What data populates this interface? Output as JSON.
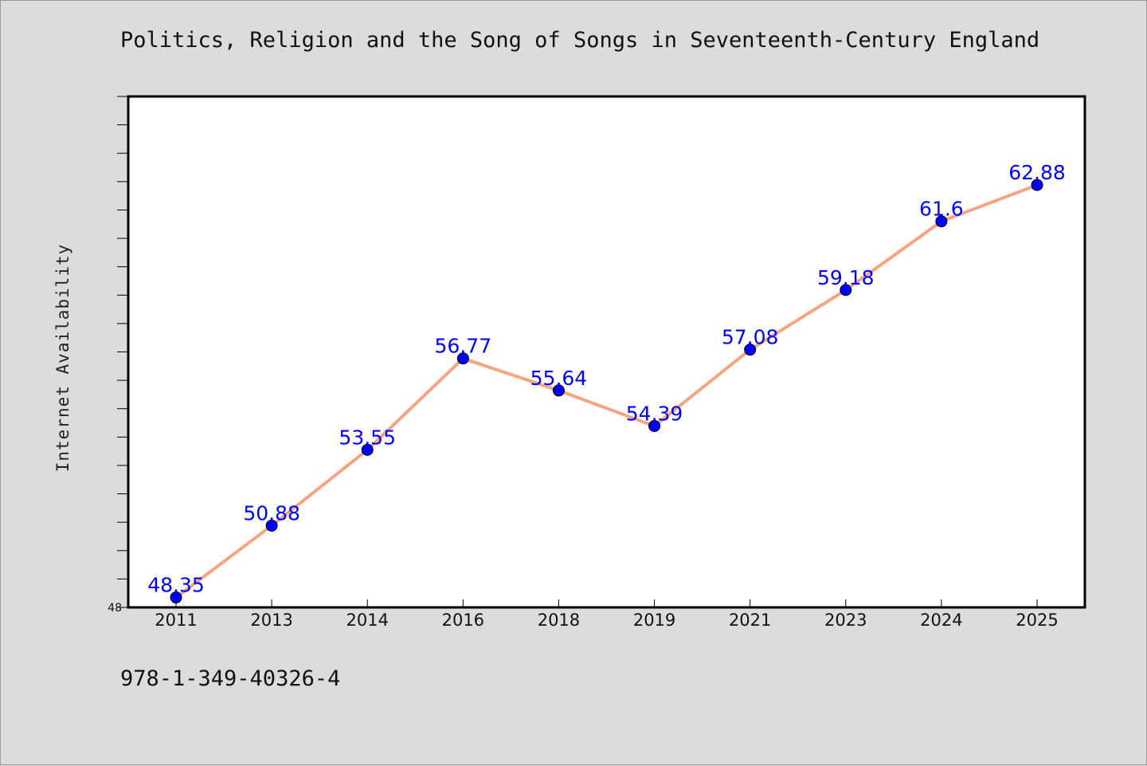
{
  "header": {
    "title": "Politics, Religion and the Song of Songs in Seventeenth-Century England"
  },
  "footer": {
    "code": "978-1-349-40326-4"
  },
  "chart_data": {
    "type": "line",
    "title": "Politics, Religion and the Song of Songs in Seventeenth-Century England",
    "xlabel": "",
    "ylabel": "Internet Availability",
    "categories": [
      "2011",
      "2013",
      "2014",
      "2016",
      "2018",
      "2019",
      "2021",
      "2023",
      "2024",
      "2025"
    ],
    "series": [
      {
        "values": [
          48.35,
          50.88,
          53.55,
          56.77,
          55.64,
          54.39,
          57.08,
          59.18,
          61.6,
          62.88
        ],
        "data_labels": [
          "48.35",
          "50.88",
          "53.55",
          "56.77",
          "55.64",
          "54.39",
          "57.08",
          "59.18",
          "61.6",
          "62.88"
        ],
        "line_color": "#f4a582",
        "marker_color": "#0000ff"
      }
    ],
    "ylim": [
      48,
      66
    ],
    "yticks": [
      48,
      49,
      50,
      51,
      52,
      53,
      54,
      55,
      56,
      57,
      58,
      59,
      60,
      61,
      62,
      63,
      64,
      65,
      66
    ],
    "ytick_labels_shown": [
      "48"
    ],
    "grid": false,
    "legend": "none",
    "background": "#dcdcdc",
    "plot_background": "#ffffff",
    "label_color": "#0000ff"
  }
}
